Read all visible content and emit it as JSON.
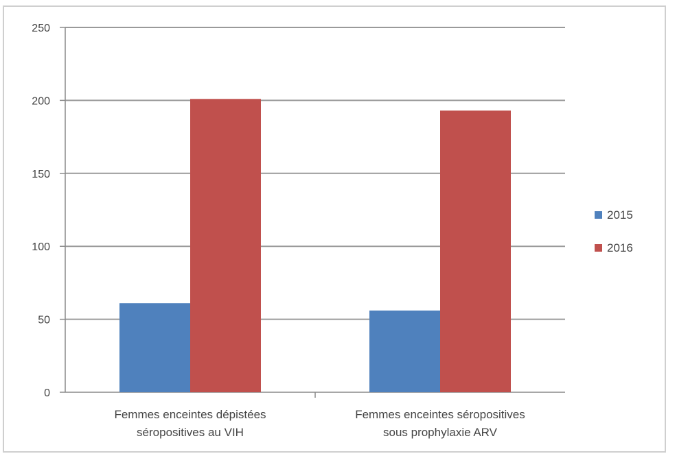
{
  "chart_data": {
    "type": "bar",
    "categories": [
      [
        "Femmes enceintes dépistées",
        "séropositives au VIH"
      ],
      [
        "Femmes enceintes séropositives",
        "sous prophylaxie ARV"
      ]
    ],
    "series": [
      {
        "name": "2015",
        "color": "#4f81bd",
        "values": [
          61,
          56
        ]
      },
      {
        "name": "2016",
        "color": "#c0504d",
        "values": [
          201,
          193
        ]
      }
    ],
    "ylim": [
      0,
      250
    ],
    "yticks": [
      0,
      50,
      100,
      150,
      200,
      250
    ],
    "grid": true,
    "legend": "right",
    "title": "",
    "xlabel": "",
    "ylabel": ""
  }
}
